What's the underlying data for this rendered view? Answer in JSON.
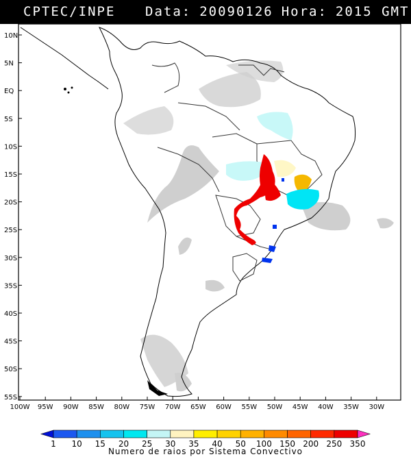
{
  "header": {
    "agency": "CPTEC/INPE",
    "date_label": "Data:",
    "date_value": "20090126",
    "hour_label": "Hora:",
    "hour_value": "2015 GMT"
  },
  "map": {
    "lat_ticks": [
      "10N",
      "5N",
      "EQ",
      "5S",
      "10S",
      "15S",
      "20S",
      "25S",
      "30S",
      "35S",
      "40S",
      "45S",
      "50S",
      "55S"
    ],
    "lon_ticks": [
      "100W",
      "95W",
      "90W",
      "85W",
      "80W",
      "75W",
      "70W",
      "65W",
      "60W",
      "55W",
      "50W",
      "45W",
      "40W",
      "35W",
      "30W"
    ],
    "lat_range": [
      10,
      -55
    ],
    "lon_range": [
      -100,
      -30
    ],
    "colors": {
      "land_border": "#000000",
      "cloud": "#c9c9c9",
      "cyan": "#00e5f5",
      "light_cyan": "#c8f8f8",
      "cream": "#fff7c6",
      "orange": "#f5b800",
      "red": "#ee0000",
      "blue": "#0033ee"
    }
  },
  "legend": {
    "values": [
      "1",
      "10",
      "15",
      "20",
      "25",
      "30",
      "35",
      "40",
      "50",
      "100",
      "150",
      "200",
      "250",
      "350"
    ],
    "colors": [
      "#0010d8",
      "#1c58f0",
      "#1e90ee",
      "#15c3ee",
      "#00e8f0",
      "#c4f5f5",
      "#fff3c0",
      "#ffee00",
      "#ffd200",
      "#ffb100",
      "#ff8a00",
      "#ff6400",
      "#ff2a00",
      "#ee0000",
      "#ff30c0"
    ],
    "caption": "Numero de raios por Sistema Convectivo"
  }
}
